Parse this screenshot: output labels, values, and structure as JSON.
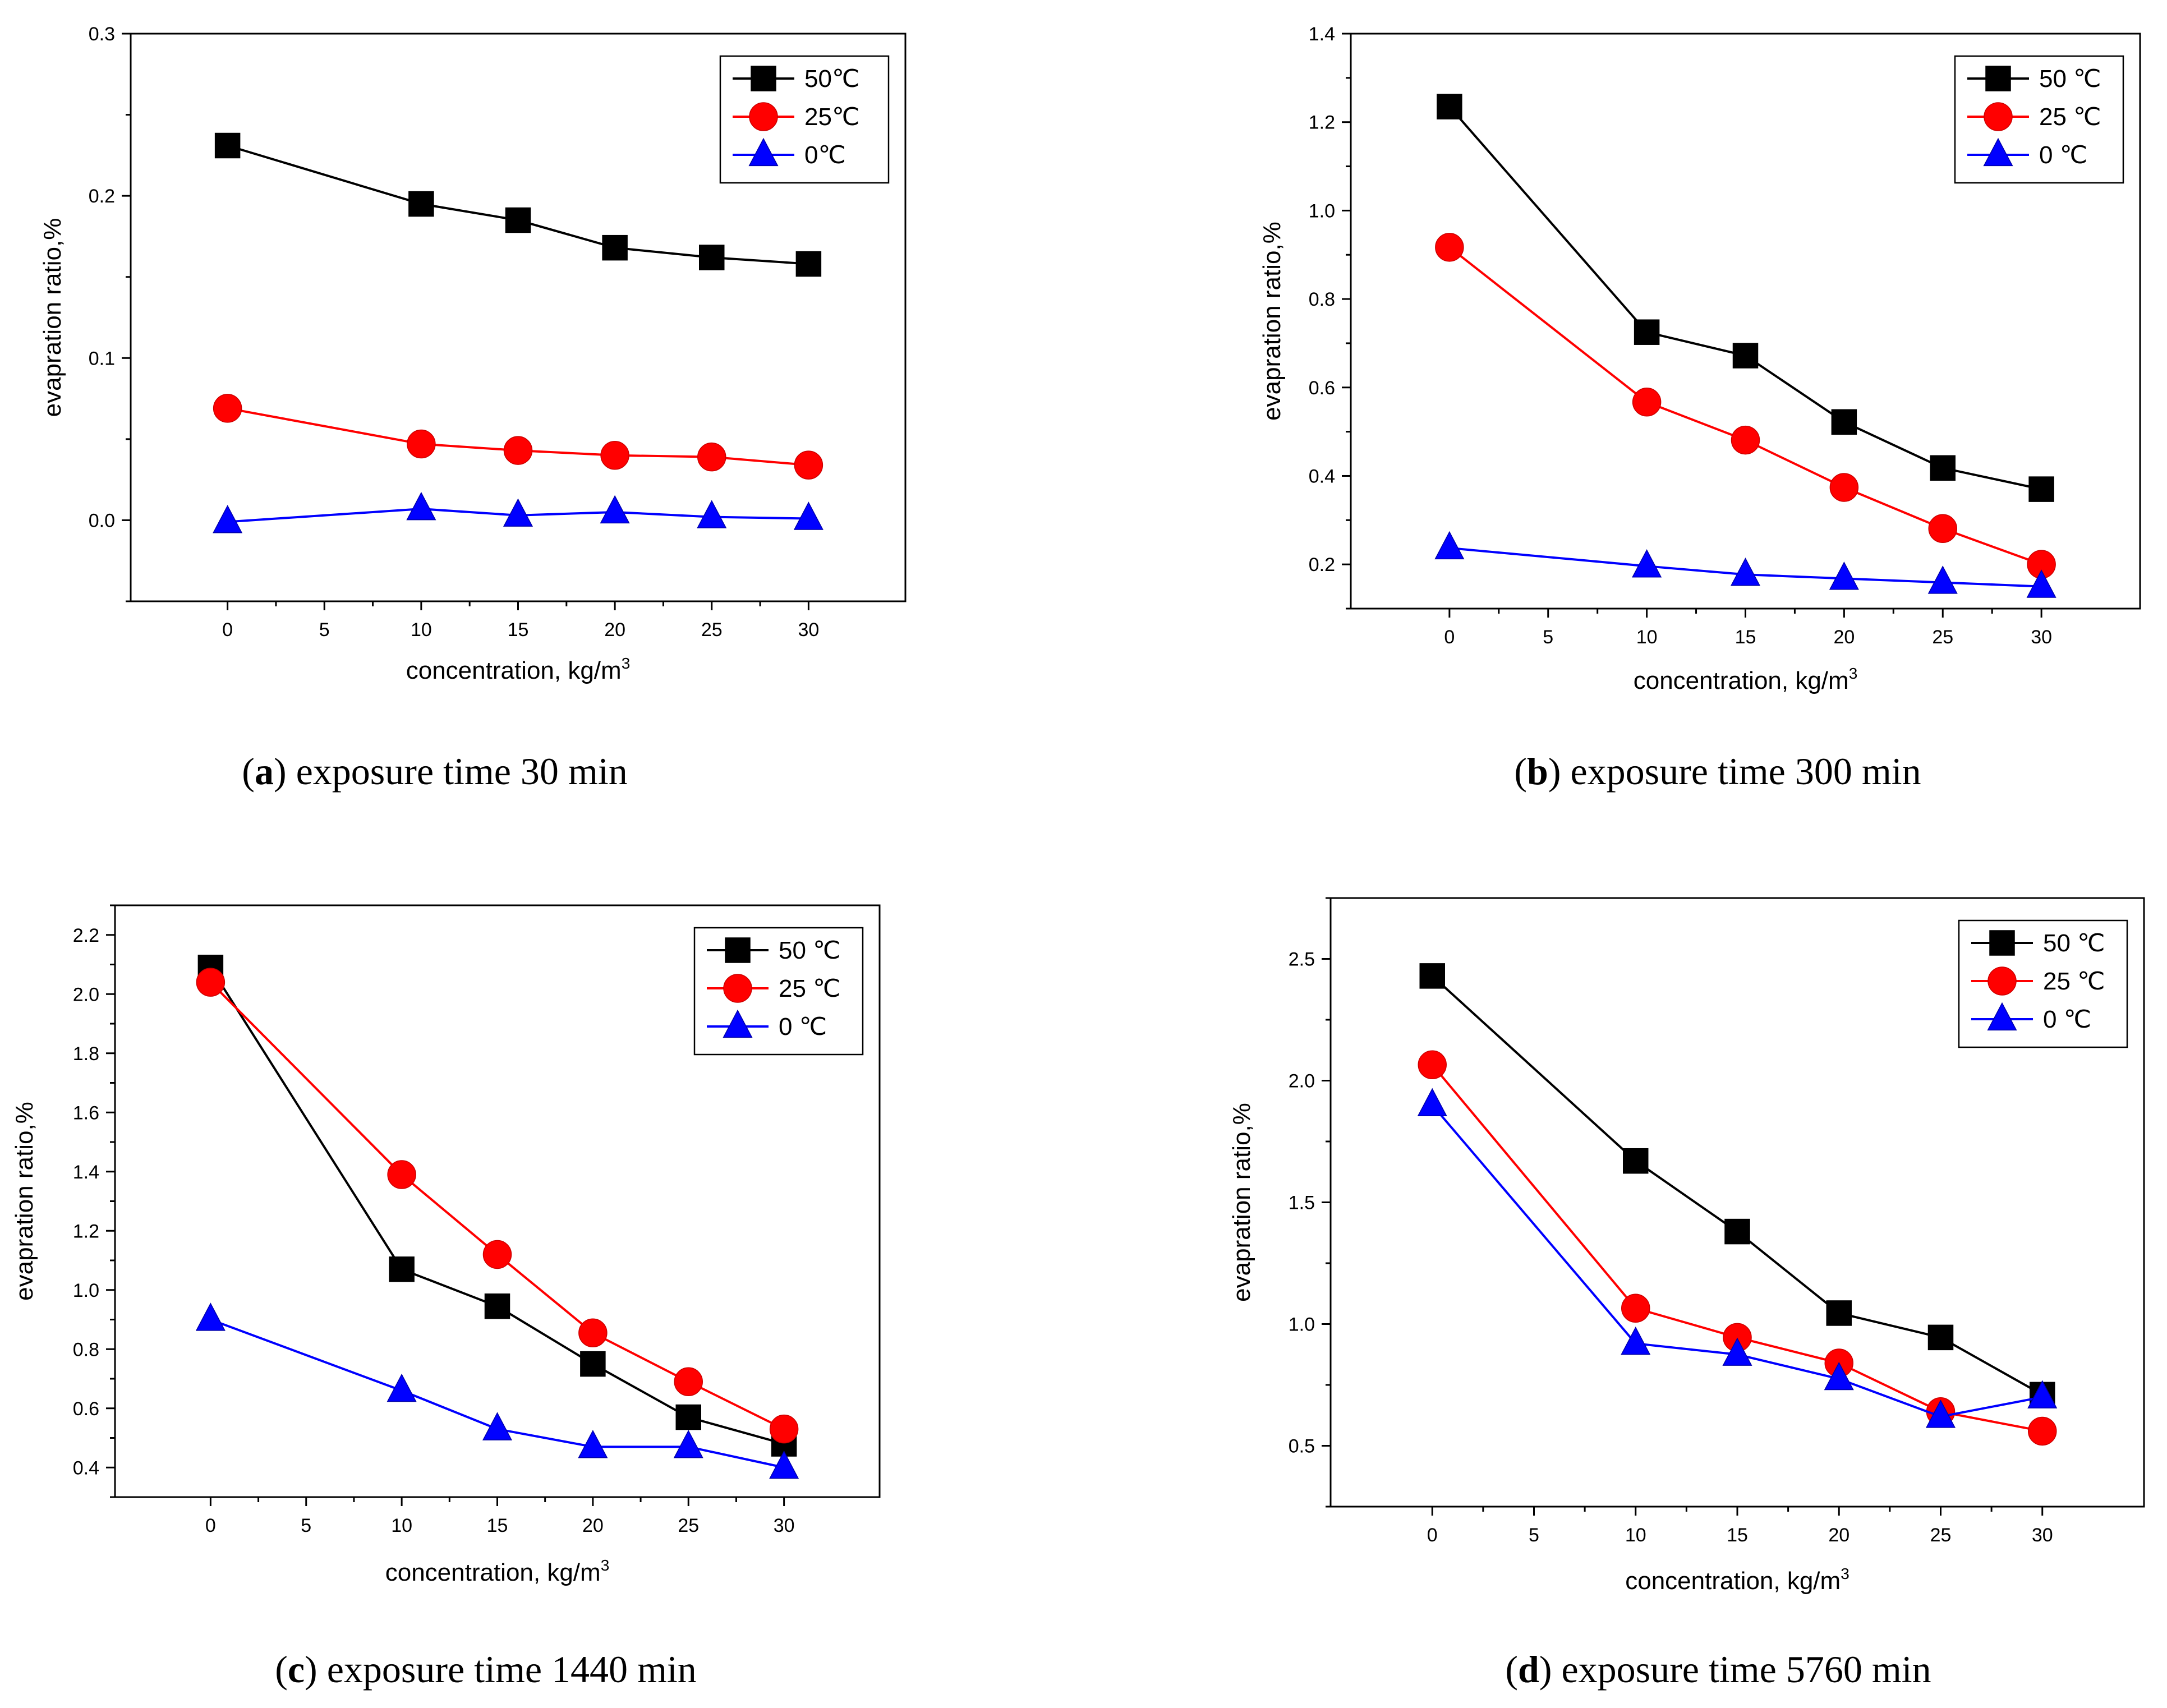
{
  "figure": {
    "x_label": "concentration, kg/m",
    "x_label_sup": "3",
    "y_label": "evapration ratio,%"
  },
  "series_styles": [
    {
      "color": "#000000",
      "marker": "square"
    },
    {
      "color": "#ff0000",
      "marker": "circle"
    },
    {
      "color": "#0000ff",
      "marker": "triangle"
    }
  ],
  "chart_data": [
    {
      "type": "line",
      "panel": "a",
      "caption": {
        "letter": "a",
        "text": "exposure time 30 min"
      },
      "xlabel": "concentration, kg/m3",
      "ylabel": "evapration ratio,%",
      "xlim": [
        -5,
        35
      ],
      "ylim": [
        -0.05,
        0.3
      ],
      "xticks": [
        "0",
        "5",
        "10",
        "15",
        "20",
        "25",
        "30"
      ],
      "yticks": [
        "0.0",
        "0.1",
        "0.2",
        "0.3"
      ],
      "legend_position": "top-right",
      "x": [
        0,
        10,
        15,
        20,
        25,
        30
      ],
      "series": [
        {
          "name": "50℃",
          "values": [
            0.231,
            0.195,
            0.185,
            0.168,
            0.162,
            0.158
          ]
        },
        {
          "name": "25℃",
          "values": [
            0.069,
            0.047,
            0.043,
            0.04,
            0.039,
            0.034
          ]
        },
        {
          "name": "0℃",
          "values": [
            -0.001,
            0.007,
            0.003,
            0.005,
            0.002,
            0.001
          ]
        }
      ]
    },
    {
      "type": "line",
      "panel": "b",
      "caption": {
        "letter": "b",
        "text": "exposure time 300 min"
      },
      "xlabel": "concentration, kg/m3",
      "ylabel": "evapration ratio,%",
      "xlim": [
        -5,
        35
      ],
      "ylim": [
        0.1,
        1.4
      ],
      "xticks": [
        "0",
        "5",
        "10",
        "15",
        "20",
        "25",
        "30"
      ],
      "yticks": [
        "0.2",
        "0.4",
        "0.6",
        "0.8",
        "1.0",
        "1.2",
        "1.4"
      ],
      "legend_position": "top-right",
      "x": [
        0,
        10,
        15,
        20,
        25,
        30
      ],
      "series": [
        {
          "name": "50 ℃",
          "values": [
            1.235,
            0.725,
            0.672,
            0.522,
            0.418,
            0.37
          ]
        },
        {
          "name": "25 ℃",
          "values": [
            0.917,
            0.567,
            0.481,
            0.374,
            0.281,
            0.2
          ]
        },
        {
          "name": "0 ℃",
          "values": [
            0.237,
            0.196,
            0.177,
            0.168,
            0.159,
            0.15
          ]
        }
      ]
    },
    {
      "type": "line",
      "panel": "c",
      "caption": {
        "letter": "c",
        "text": "exposure time 1440 min"
      },
      "xlabel": "concentration, kg/m3",
      "ylabel": "evapration ratio,%",
      "xlim": [
        -5,
        35
      ],
      "ylim": [
        0.3,
        2.3
      ],
      "xticks": [
        "0",
        "5",
        "10",
        "15",
        "20",
        "25",
        "30"
      ],
      "yticks": [
        "0.4",
        "0.6",
        "0.8",
        "1.0",
        "1.2",
        "1.4",
        "1.6",
        "1.8",
        "2.0",
        "2.2"
      ],
      "legend_position": "top-right",
      "x": [
        0,
        10,
        15,
        20,
        25,
        30
      ],
      "series": [
        {
          "name": "50 ℃",
          "values": [
            2.09,
            1.07,
            0.945,
            0.75,
            0.57,
            0.48
          ]
        },
        {
          "name": "25 ℃",
          "values": [
            2.04,
            1.39,
            1.12,
            0.855,
            0.69,
            0.53
          ]
        },
        {
          "name": "0 ℃",
          "values": [
            0.9,
            0.66,
            0.53,
            0.47,
            0.47,
            0.4
          ]
        }
      ]
    },
    {
      "type": "line",
      "panel": "d",
      "caption": {
        "letter": "d",
        "text": "exposure time 5760 min"
      },
      "xlabel": "concentration, kg/m3",
      "ylabel": "evapration ratio,%",
      "xlim": [
        -5,
        35
      ],
      "ylim": [
        0.25,
        2.75
      ],
      "xticks": [
        "0",
        "5",
        "10",
        "15",
        "20",
        "25",
        "30"
      ],
      "yticks": [
        "0.5",
        "1.0",
        "1.5",
        "2.0",
        "2.5"
      ],
      "legend_position": "top-right",
      "x": [
        0,
        10,
        15,
        20,
        25,
        30
      ],
      "series": [
        {
          "name": "50 ℃",
          "values": [
            2.43,
            1.67,
            1.38,
            1.045,
            0.945,
            0.71
          ]
        },
        {
          "name": "25 ℃",
          "values": [
            2.065,
            1.065,
            0.945,
            0.84,
            0.64,
            0.56
          ]
        },
        {
          "name": "0 ℃",
          "values": [
            1.9,
            0.92,
            0.875,
            0.775,
            0.62,
            0.7
          ]
        }
      ]
    }
  ]
}
